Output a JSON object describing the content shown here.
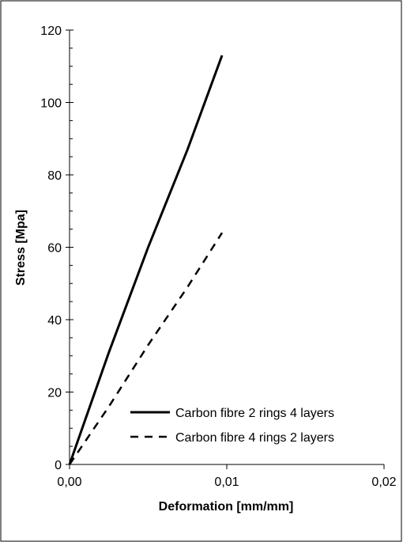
{
  "chart_data": {
    "type": "line",
    "title": "",
    "xlabel": "Deformation [mm/mm]",
    "ylabel": "Stress [Mpa]",
    "xlim": [
      0,
      0.02
    ],
    "ylim": [
      0,
      120
    ],
    "x_ticks": [
      0,
      0.01,
      0.02
    ],
    "x_tick_labels": [
      "0,00",
      "0,01",
      "0,02"
    ],
    "y_ticks": [
      0,
      20,
      40,
      60,
      80,
      100,
      120
    ],
    "y_tick_labels": [
      "0",
      "20",
      "40",
      "60",
      "80",
      "100",
      "120"
    ],
    "grid": false,
    "legend_position": "bottom-right",
    "series": [
      {
        "name": "Carbon fibre 2 rings 4 layers",
        "style": "solid",
        "color": "#000000",
        "points": [
          [
            0,
            0
          ],
          [
            0.0025,
            31
          ],
          [
            0.005,
            60
          ],
          [
            0.0075,
            87
          ],
          [
            0.0097,
            113
          ]
        ]
      },
      {
        "name": "Carbon fibre 4 rings 2 layers",
        "style": "dashed",
        "color": "#000000",
        "points": [
          [
            0,
            0
          ],
          [
            0.0025,
            16
          ],
          [
            0.005,
            33
          ],
          [
            0.0075,
            49
          ],
          [
            0.0097,
            64
          ]
        ]
      }
    ]
  }
}
